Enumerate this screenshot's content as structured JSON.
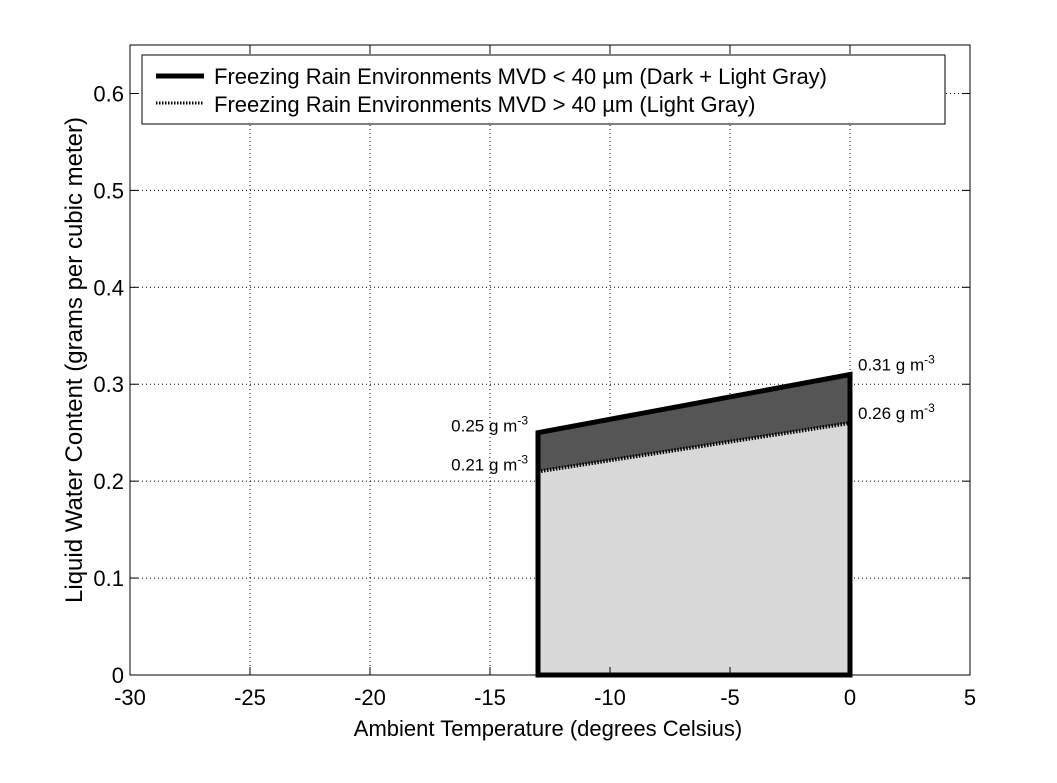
{
  "chart_data": {
    "type": "area",
    "xlabel": "Ambient Temperature (degrees Celsius)",
    "ylabel": "Liquid Water Content (grams per cubic meter)",
    "xlim": [
      -30,
      5
    ],
    "ylim": [
      0,
      0.65
    ],
    "xticks": [
      -30,
      -25,
      -20,
      -15,
      -10,
      -5,
      0,
      5
    ],
    "yticks": [
      0,
      0.1,
      0.2,
      0.3,
      0.4,
      0.5,
      0.6
    ],
    "xtick_labels": [
      "-30",
      "-25",
      "-20",
      "-15",
      "-10",
      "-5",
      "0",
      "5"
    ],
    "ytick_labels": [
      "0",
      "0.1",
      "0.2",
      "0.3",
      "0.4",
      "0.5",
      "0.6"
    ],
    "grid": true,
    "legend_position": "top",
    "series": [
      {
        "name": "Freezing Rain Environments MVD < 40 µm (Dark + Light Gray)",
        "x": [
          -13,
          -13,
          0,
          0
        ],
        "y": [
          0,
          0.25,
          0.31,
          0
        ],
        "fill": "#555555",
        "line_style": "solid"
      },
      {
        "name": "Freezing Rain Environments MVD > 40 µm (Light Gray)",
        "x": [
          -13,
          -13,
          0,
          0
        ],
        "y": [
          0,
          0.21,
          0.26,
          0
        ],
        "fill": "#d8d8d8",
        "line_style": "dotted"
      }
    ],
    "annotations": [
      {
        "base": "0.25 g m",
        "sup": "-3",
        "x": -13,
        "y": 0.25,
        "side": "left"
      },
      {
        "base": "0.21 g m",
        "sup": "-3",
        "x": -13,
        "y": 0.21,
        "side": "left"
      },
      {
        "base": "0.31 g m",
        "sup": "-3",
        "x": 0,
        "y": 0.31,
        "side": "right"
      },
      {
        "base": "0.26 g m",
        "sup": "-3",
        "x": 0,
        "y": 0.26,
        "side": "right"
      }
    ]
  }
}
